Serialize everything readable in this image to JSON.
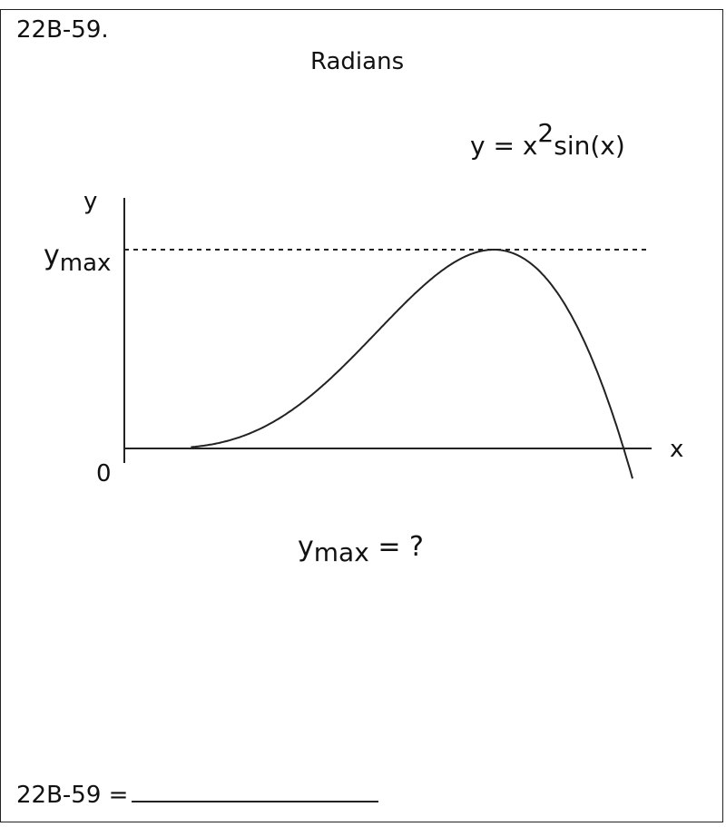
{
  "problem": {
    "id_label": "22B-59.",
    "unit_label": "Radians",
    "equation": {
      "lhs": "y = x",
      "exponent": "2",
      "rhs": "sin(x)"
    },
    "question": {
      "base": "y",
      "subscript": "max",
      "suffix": " = ?"
    },
    "answer_prompt": "22B-59 ="
  },
  "diagram": {
    "y_axis_label": "y",
    "x_axis_label": "x",
    "origin_label": "0",
    "ymax_label": {
      "base": "y",
      "subscript": "max"
    },
    "curve_function": "x^2*sin(x)",
    "x_range": [
      0,
      3.2
    ],
    "dashed_line_at": "ymax"
  }
}
